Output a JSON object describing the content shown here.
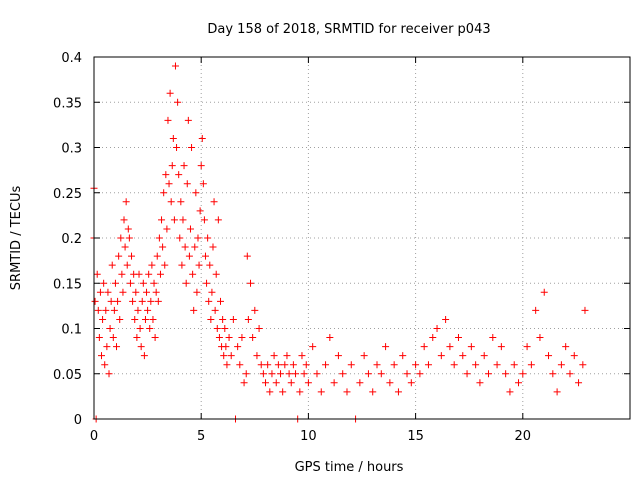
{
  "chart_data": {
    "type": "scatter",
    "title": "Day 158 of 2018, SRMTID for receiver p043",
    "xlabel": "GPS time / hours",
    "ylabel": "SRMTID / TECUs",
    "xlim": [
      0,
      25
    ],
    "ylim": [
      0,
      0.4
    ],
    "x_ticks": [
      0,
      5,
      10,
      15,
      20
    ],
    "x_tick_labels": [
      "0",
      "5",
      "10",
      "15",
      "20"
    ],
    "y_ticks": [
      0,
      0.05,
      0.1,
      0.15,
      0.2,
      0.25,
      0.3,
      0.35,
      0.4
    ],
    "y_tick_labels": [
      "0",
      "0.05",
      "0.1",
      "0.15",
      "0.2",
      "0.25",
      "0.3",
      "0.35",
      "0.4"
    ],
    "grid": true,
    "marker": "+",
    "color": "#ff0000",
    "series": [
      {
        "name": "SRMTID",
        "points": [
          [
            0.0,
            0.255
          ],
          [
            0.0,
            0.2
          ],
          [
            0.05,
            0.13
          ],
          [
            0.1,
            0.0
          ],
          [
            0.15,
            0.16
          ],
          [
            0.2,
            0.12
          ],
          [
            0.25,
            0.09
          ],
          [
            0.3,
            0.14
          ],
          [
            0.35,
            0.07
          ],
          [
            0.4,
            0.11
          ],
          [
            0.45,
            0.15
          ],
          [
            0.5,
            0.06
          ],
          [
            0.55,
            0.12
          ],
          [
            0.6,
            0.08
          ],
          [
            0.65,
            0.14
          ],
          [
            0.7,
            0.05
          ],
          [
            0.75,
            0.1
          ],
          [
            0.8,
            0.13
          ],
          [
            0.85,
            0.17
          ],
          [
            0.9,
            0.09
          ],
          [
            0.95,
            0.12
          ],
          [
            1.0,
            0.15
          ],
          [
            1.05,
            0.08
          ],
          [
            1.1,
            0.13
          ],
          [
            1.15,
            0.18
          ],
          [
            1.2,
            0.11
          ],
          [
            1.25,
            0.2
          ],
          [
            1.3,
            0.16
          ],
          [
            1.35,
            0.14
          ],
          [
            1.4,
            0.22
          ],
          [
            1.45,
            0.19
          ],
          [
            1.5,
            0.24
          ],
          [
            1.55,
            0.17
          ],
          [
            1.6,
            0.21
          ],
          [
            1.65,
            0.2
          ],
          [
            1.7,
            0.15
          ],
          [
            1.75,
            0.18
          ],
          [
            1.8,
            0.13
          ],
          [
            1.85,
            0.16
          ],
          [
            1.9,
            0.11
          ],
          [
            1.95,
            0.14
          ],
          [
            2.0,
            0.09
          ],
          [
            2.05,
            0.12
          ],
          [
            2.1,
            0.16
          ],
          [
            2.15,
            0.1
          ],
          [
            2.2,
            0.08
          ],
          [
            2.25,
            0.13
          ],
          [
            2.3,
            0.15
          ],
          [
            2.35,
            0.07
          ],
          [
            2.4,
            0.11
          ],
          [
            2.45,
            0.14
          ],
          [
            2.5,
            0.12
          ],
          [
            2.55,
            0.16
          ],
          [
            2.6,
            0.1
          ],
          [
            2.65,
            0.13
          ],
          [
            2.7,
            0.17
          ],
          [
            2.75,
            0.11
          ],
          [
            2.8,
            0.15
          ],
          [
            2.85,
            0.09
          ],
          [
            2.9,
            0.14
          ],
          [
            2.95,
            0.18
          ],
          [
            3.0,
            0.13
          ],
          [
            3.05,
            0.2
          ],
          [
            3.1,
            0.16
          ],
          [
            3.15,
            0.22
          ],
          [
            3.2,
            0.19
          ],
          [
            3.25,
            0.25
          ],
          [
            3.3,
            0.17
          ],
          [
            3.35,
            0.27
          ],
          [
            3.4,
            0.21
          ],
          [
            3.45,
            0.33
          ],
          [
            3.5,
            0.26
          ],
          [
            3.55,
            0.36
          ],
          [
            3.6,
            0.24
          ],
          [
            3.65,
            0.28
          ],
          [
            3.7,
            0.31
          ],
          [
            3.75,
            0.22
          ],
          [
            3.8,
            0.39
          ],
          [
            3.85,
            0.3
          ],
          [
            3.9,
            0.35
          ],
          [
            3.95,
            0.27
          ],
          [
            4.0,
            0.2
          ],
          [
            4.05,
            0.24
          ],
          [
            4.1,
            0.17
          ],
          [
            4.15,
            0.22
          ],
          [
            4.2,
            0.28
          ],
          [
            4.25,
            0.19
          ],
          [
            4.3,
            0.15
          ],
          [
            4.35,
            0.26
          ],
          [
            4.4,
            0.33
          ],
          [
            4.45,
            0.18
          ],
          [
            4.5,
            0.21
          ],
          [
            4.55,
            0.3
          ],
          [
            4.6,
            0.16
          ],
          [
            4.65,
            0.12
          ],
          [
            4.7,
            0.19
          ],
          [
            4.75,
            0.25
          ],
          [
            4.8,
            0.14
          ],
          [
            4.85,
            0.2
          ],
          [
            4.9,
            0.17
          ],
          [
            4.95,
            0.23
          ],
          [
            5.0,
            0.28
          ],
          [
            5.05,
            0.31
          ],
          [
            5.1,
            0.26
          ],
          [
            5.15,
            0.22
          ],
          [
            5.2,
            0.18
          ],
          [
            5.25,
            0.15
          ],
          [
            5.3,
            0.2
          ],
          [
            5.35,
            0.13
          ],
          [
            5.4,
            0.17
          ],
          [
            5.45,
            0.11
          ],
          [
            5.5,
            0.14
          ],
          [
            5.55,
            0.19
          ],
          [
            5.6,
            0.24
          ],
          [
            5.65,
            0.12
          ],
          [
            5.7,
            0.16
          ],
          [
            5.75,
            0.1
          ],
          [
            5.8,
            0.22
          ],
          [
            5.85,
            0.09
          ],
          [
            5.9,
            0.13
          ],
          [
            5.95,
            0.08
          ],
          [
            6.0,
            0.11
          ],
          [
            6.05,
            0.07
          ],
          [
            6.1,
            0.1
          ],
          [
            6.15,
            0.08
          ],
          [
            6.2,
            0.06
          ],
          [
            6.3,
            0.09
          ],
          [
            6.4,
            0.07
          ],
          [
            6.5,
            0.11
          ],
          [
            6.6,
            0.0
          ],
          [
            6.7,
            0.08
          ],
          [
            6.8,
            0.06
          ],
          [
            6.9,
            0.09
          ],
          [
            7.0,
            0.04
          ],
          [
            7.1,
            0.05
          ],
          [
            7.15,
            0.18
          ],
          [
            7.2,
            0.11
          ],
          [
            7.3,
            0.15
          ],
          [
            7.4,
            0.09
          ],
          [
            7.5,
            0.12
          ],
          [
            7.6,
            0.07
          ],
          [
            7.7,
            0.1
          ],
          [
            7.8,
            0.06
          ],
          [
            7.9,
            0.05
          ],
          [
            8.0,
            0.04
          ],
          [
            8.1,
            0.06
          ],
          [
            8.2,
            0.03
          ],
          [
            8.3,
            0.05
          ],
          [
            8.4,
            0.07
          ],
          [
            8.5,
            0.04
          ],
          [
            8.6,
            0.06
          ],
          [
            8.7,
            0.05
          ],
          [
            8.8,
            0.03
          ],
          [
            8.9,
            0.06
          ],
          [
            9.0,
            0.07
          ],
          [
            9.1,
            0.05
          ],
          [
            9.2,
            0.04
          ],
          [
            9.3,
            0.06
          ],
          [
            9.4,
            0.05
          ],
          [
            9.5,
            0.0
          ],
          [
            9.6,
            0.03
          ],
          [
            9.7,
            0.07
          ],
          [
            9.8,
            0.05
          ],
          [
            9.9,
            0.06
          ],
          [
            10.0,
            0.04
          ],
          [
            10.2,
            0.08
          ],
          [
            10.4,
            0.05
          ],
          [
            10.6,
            0.03
          ],
          [
            10.8,
            0.06
          ],
          [
            11.0,
            0.09
          ],
          [
            11.2,
            0.04
          ],
          [
            11.4,
            0.07
          ],
          [
            11.6,
            0.05
          ],
          [
            11.8,
            0.03
          ],
          [
            12.0,
            0.06
          ],
          [
            12.2,
            0.0
          ],
          [
            12.4,
            0.04
          ],
          [
            12.6,
            0.07
          ],
          [
            12.8,
            0.05
          ],
          [
            13.0,
            0.03
          ],
          [
            13.2,
            0.06
          ],
          [
            13.4,
            0.05
          ],
          [
            13.6,
            0.08
          ],
          [
            13.8,
            0.04
          ],
          [
            14.0,
            0.06
          ],
          [
            14.2,
            0.03
          ],
          [
            14.4,
            0.07
          ],
          [
            14.6,
            0.05
          ],
          [
            14.8,
            0.04
          ],
          [
            15.0,
            0.06
          ],
          [
            15.2,
            0.05
          ],
          [
            15.4,
            0.08
          ],
          [
            15.6,
            0.06
          ],
          [
            15.8,
            0.09
          ],
          [
            16.0,
            0.1
          ],
          [
            16.2,
            0.07
          ],
          [
            16.4,
            0.11
          ],
          [
            16.6,
            0.08
          ],
          [
            16.8,
            0.06
          ],
          [
            17.0,
            0.09
          ],
          [
            17.2,
            0.07
          ],
          [
            17.4,
            0.05
          ],
          [
            17.6,
            0.08
          ],
          [
            17.8,
            0.06
          ],
          [
            18.0,
            0.04
          ],
          [
            18.2,
            0.07
          ],
          [
            18.4,
            0.05
          ],
          [
            18.6,
            0.09
          ],
          [
            18.8,
            0.06
          ],
          [
            19.0,
            0.08
          ],
          [
            19.2,
            0.05
          ],
          [
            19.4,
            0.03
          ],
          [
            19.6,
            0.06
          ],
          [
            19.8,
            0.04
          ],
          [
            20.0,
            0.05
          ],
          [
            20.2,
            0.08
          ],
          [
            20.4,
            0.06
          ],
          [
            20.6,
            0.12
          ],
          [
            20.8,
            0.09
          ],
          [
            21.0,
            0.14
          ],
          [
            21.2,
            0.07
          ],
          [
            21.4,
            0.05
          ],
          [
            21.6,
            0.03
          ],
          [
            21.8,
            0.06
          ],
          [
            22.0,
            0.08
          ],
          [
            22.2,
            0.05
          ],
          [
            22.4,
            0.07
          ],
          [
            22.6,
            0.04
          ],
          [
            22.8,
            0.06
          ],
          [
            22.9,
            0.12
          ]
        ]
      }
    ]
  }
}
